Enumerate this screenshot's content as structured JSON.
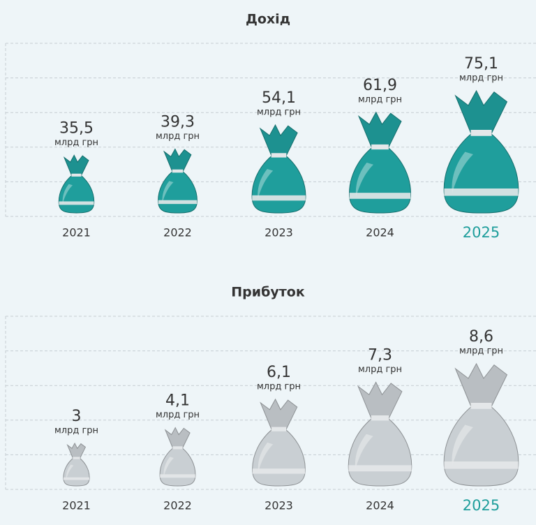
{
  "chart_data": [
    {
      "type": "bar",
      "title": "Дохід",
      "categories": [
        "2021",
        "2022",
        "2023",
        "2024",
        "2025"
      ],
      "values": [
        35.5,
        39.3,
        54.1,
        61.9,
        75.1
      ],
      "value_labels": [
        "35,5",
        "39,3",
        "54,1",
        "61,9",
        "75,1"
      ],
      "unit": "млрд грн",
      "color": "#1f9e9c",
      "category_colors": [
        "#333333",
        "#333333",
        "#333333",
        "#333333",
        "#1f9e9c"
      ],
      "grid": true
    },
    {
      "type": "bar",
      "title": "Прибуток",
      "categories": [
        "2021",
        "2022",
        "2023",
        "2024",
        "2025"
      ],
      "values": [
        3,
        4.1,
        6.1,
        7.3,
        8.6
      ],
      "value_labels": [
        "3",
        "4,1",
        "6,1",
        "7,3",
        "8,6"
      ],
      "unit": "млрд грн",
      "color": "#c9cfd3",
      "category_colors": [
        "#333333",
        "#333333",
        "#333333",
        "#333333",
        "#1f9e9c"
      ],
      "grid": true
    }
  ]
}
